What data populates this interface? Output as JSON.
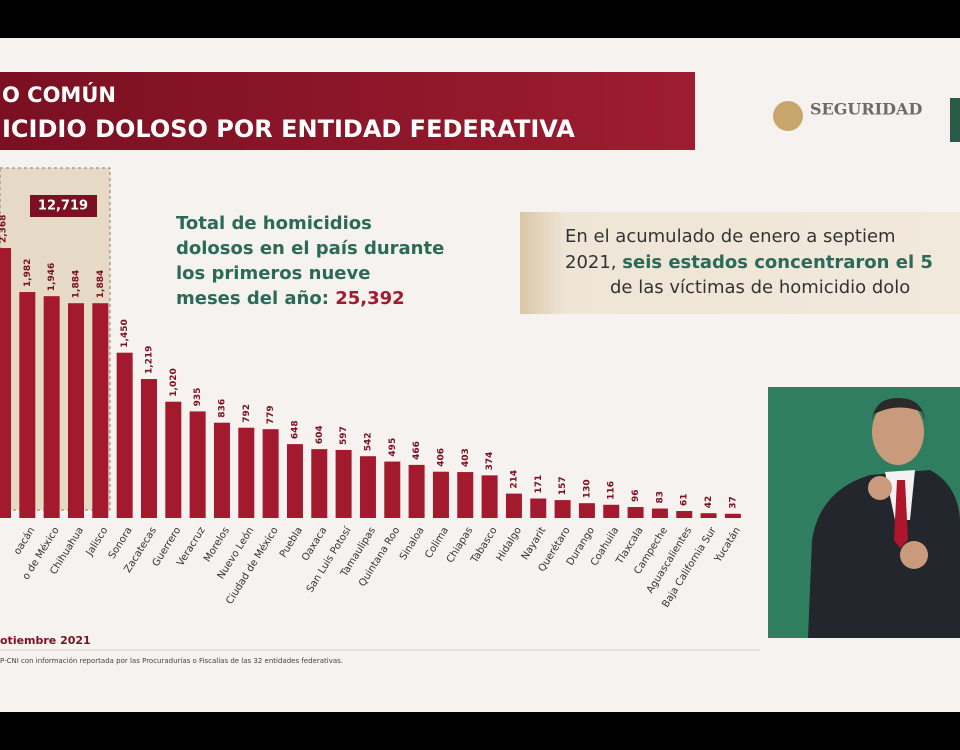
{
  "header": {
    "title_lines": [
      "O COMÚN",
      "ICIDIO DOLOSO POR ENTIDAD FEDERATIVA"
    ],
    "logo": "SEGURIDAD"
  },
  "chart_data": {
    "type": "bar",
    "categories": [
      null,
      "oacán",
      "o de México",
      "Chihuahua",
      "Jalisco",
      "Sonora",
      "Zacatecas",
      "Guerrero",
      "Veracruz",
      "Morelos",
      "Nuevo León",
      "Ciudad de México",
      "Puebla",
      "Oaxaca",
      "San Luis Potosí",
      "Tamaulipas",
      "Quintana Roo",
      "Sinaloa",
      "Colima",
      "Chiapas",
      "Tabasco",
      "Hidalgo",
      "Nayarit",
      "Querétaro",
      "Durango",
      "Coahuila",
      "Tlaxcala",
      "Campeche",
      "Aguascalientes",
      "Baja California Sur",
      "Yucatán"
    ],
    "values": [
      2368,
      1982,
      1946,
      1884,
      1884,
      1450,
      1219,
      1020,
      935,
      836,
      792,
      779,
      648,
      604,
      597,
      542,
      495,
      466,
      406,
      403,
      374,
      214,
      171,
      157,
      130,
      116,
      96,
      83,
      61,
      42,
      37
    ],
    "value_labels": [
      "2,368",
      "1,982",
      "1,946",
      "1,884",
      "1,884",
      "1,450",
      "1,219",
      "1,020",
      "935",
      "836",
      "792",
      "779",
      "648",
      "604",
      "597",
      "542",
      "495",
      "466",
      "406",
      "403",
      "374",
      "214",
      "171",
      "157",
      "130",
      "116",
      "96",
      "83",
      "61",
      "42",
      "37"
    ],
    "color": "#a3192e",
    "highlight_label": "12,719"
  },
  "summary": {
    "lines": [
      "Total de homicidios",
      "dolosos en el país durante",
      "los primeros nueve"
    ],
    "last_line": "meses del año: ",
    "total": "25,392"
  },
  "callout": {
    "line1": "En el acumulado de enero a septiem",
    "line2_start": "2021, ",
    "line2_bold": "seis estados concentraron el 5",
    "line3": "de las víctimas de homicidio dolo"
  },
  "footer": {
    "date": "otiembre 2021",
    "source": "P-CNI con información reportada por las Procuradurías o Fiscalías de las 32 entidades federativas."
  }
}
